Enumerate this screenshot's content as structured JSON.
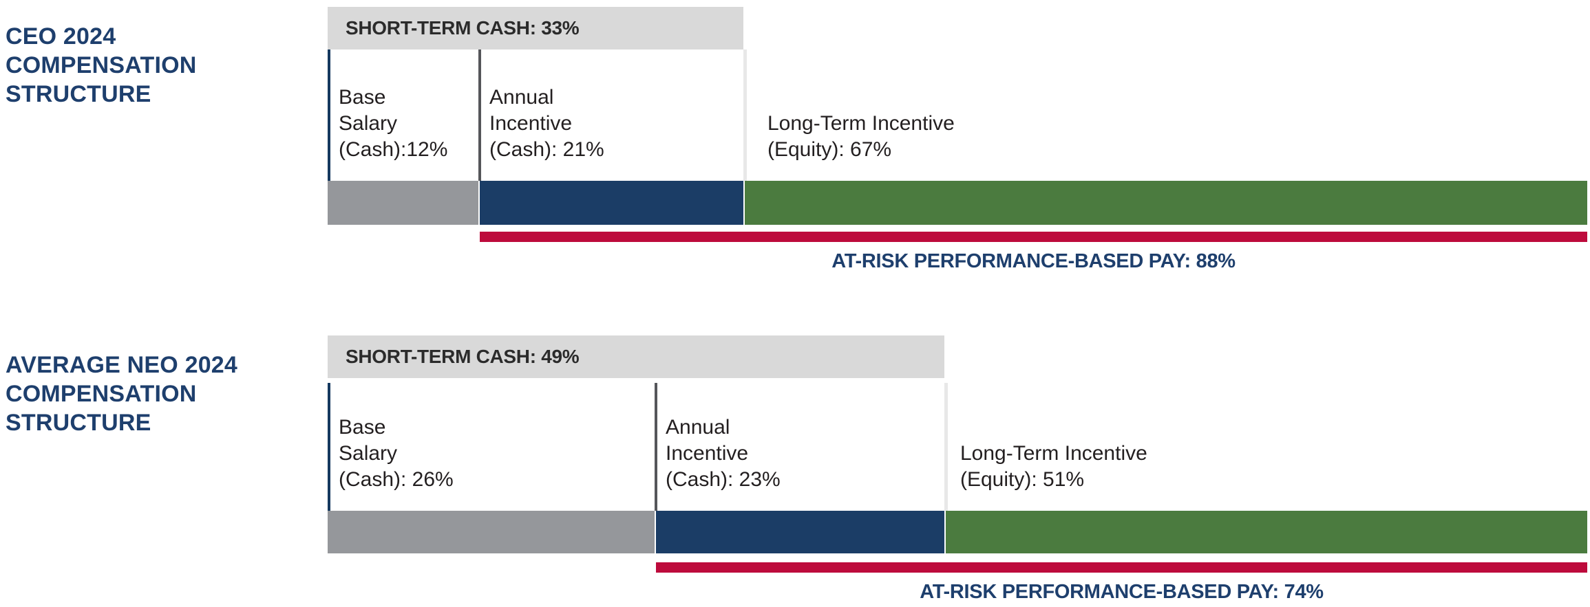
{
  "figure": {
    "background": "#FFFFFF",
    "unit": "%"
  },
  "colors": {
    "title_navy": "#1E3F6D",
    "header_background": "#D9D9D9",
    "header_text": "#2B2B2B",
    "label_text": "#231F20",
    "base_salary_gray": "#95979B",
    "annual_incentive_navy": "#1B3D66",
    "long_term_green": "#4B7B3F",
    "at_risk_red": "#BD0B3C",
    "tick_navy": "#15395F",
    "tick_gray": "#55565A",
    "tick_light_gray": "#E8E8E8"
  },
  "charts": [
    {
      "title_lines": [
        "CEO 2024",
        "COMPENSATION",
        "STRUCTURE"
      ],
      "header_label": "SHORT-TERM CASH: 33%",
      "short_term_cash_percent": 33,
      "segments": [
        {
          "name": "Base Salary (Cash)",
          "percent": 12,
          "label_lines": [
            "Base",
            "Salary",
            "(Cash):12%"
          ]
        },
        {
          "name": "Annual Incentive (Cash)",
          "percent": 21,
          "label_lines": [
            "Annual",
            "Incentive",
            "(Cash): 21%"
          ]
        },
        {
          "name": "Long-Term Incentive (Equity)",
          "percent": 67,
          "label_lines": [
            "Long-Term Incentive",
            "(Equity): 67%"
          ]
        }
      ],
      "at_risk": {
        "label": "AT-RISK PERFORMANCE-BASED PAY: 88%",
        "percent": 88
      }
    },
    {
      "title_lines": [
        "AVERAGE NEO 2024",
        "COMPENSATION",
        "STRUCTURE"
      ],
      "header_label": "SHORT-TERM CASH: 49%",
      "short_term_cash_percent": 49,
      "segments": [
        {
          "name": "Base Salary (Cash)",
          "percent": 26,
          "label_lines": [
            "Base",
            "Salary",
            "(Cash): 26%"
          ]
        },
        {
          "name": "Annual Incentive (Cash)",
          "percent": 23,
          "label_lines": [
            "Annual",
            "Incentive",
            "(Cash): 23%"
          ]
        },
        {
          "name": "Long-Term Incentive (Equity)",
          "percent": 51,
          "label_lines": [
            "Long-Term Incentive",
            "(Equity): 51%"
          ]
        }
      ],
      "at_risk": {
        "label": "AT-RISK PERFORMANCE-BASED PAY: 74%",
        "percent": 74
      }
    }
  ],
  "chart_data": [
    {
      "type": "bar",
      "stacked": true,
      "orientation": "horizontal",
      "title": "CEO 2024 Compensation Structure",
      "categories": [
        "CEO 2024"
      ],
      "series": [
        {
          "name": "Base Salary (Cash)",
          "values": [
            12
          ],
          "color": "#95979B"
        },
        {
          "name": "Annual Incentive (Cash)",
          "values": [
            21
          ],
          "color": "#1B3D66"
        },
        {
          "name": "Long-Term Incentive (Equity)",
          "values": [
            67
          ],
          "color": "#4B7B3F"
        }
      ],
      "annotations": [
        {
          "label": "Short-Term Cash",
          "value": 33,
          "unit": "%"
        },
        {
          "label": "At-Risk Performance-Based Pay",
          "value": 88,
          "unit": "%"
        }
      ],
      "xlim": [
        0,
        100
      ],
      "unit": "%",
      "legend": false,
      "grid": false
    },
    {
      "type": "bar",
      "stacked": true,
      "orientation": "horizontal",
      "title": "Average NEO 2024 Compensation Structure",
      "categories": [
        "Average NEO 2024"
      ],
      "series": [
        {
          "name": "Base Salary (Cash)",
          "values": [
            26
          ],
          "color": "#95979B"
        },
        {
          "name": "Annual Incentive (Cash)",
          "values": [
            23
          ],
          "color": "#1B3D66"
        },
        {
          "name": "Long-Term Incentive (Equity)",
          "values": [
            51
          ],
          "color": "#4B7B3F"
        }
      ],
      "annotations": [
        {
          "label": "Short-Term Cash",
          "value": 49,
          "unit": "%"
        },
        {
          "label": "At-Risk Performance-Based Pay",
          "value": 74,
          "unit": "%"
        }
      ],
      "xlim": [
        0,
        100
      ],
      "unit": "%",
      "legend": false,
      "grid": false
    }
  ]
}
